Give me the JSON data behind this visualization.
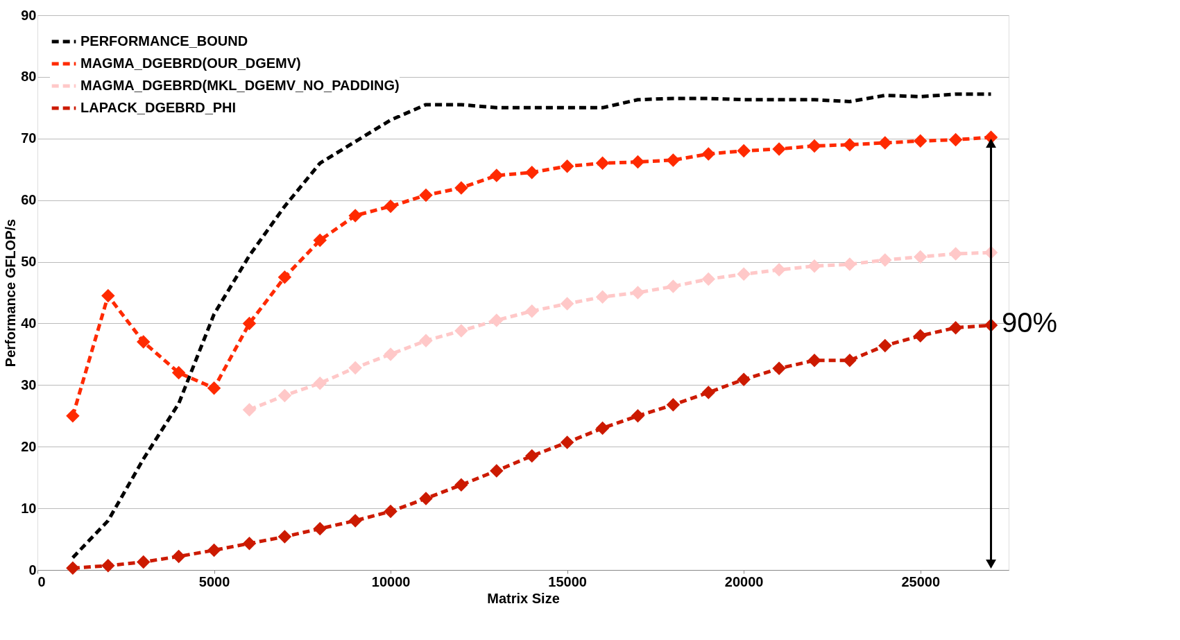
{
  "chart_data": {
    "type": "line",
    "xlabel": "Matrix Size",
    "ylabel": "Performance GFLOP/s",
    "x": [
      1000,
      2000,
      3000,
      4000,
      5000,
      6000,
      7000,
      8000,
      9000,
      10000,
      11000,
      12000,
      13000,
      14000,
      15000,
      16000,
      17000,
      18000,
      19000,
      20000,
      21000,
      22000,
      23000,
      24000,
      25000,
      26000,
      27000
    ],
    "series": [
      {
        "name": "PERFORMANCE_BOUND",
        "color": "#000000",
        "marker": "none",
        "values": [
          2,
          8,
          18,
          27,
          41.5,
          51,
          59,
          66,
          69.5,
          73,
          75.5,
          75.5,
          75,
          75,
          75,
          75,
          76.3,
          76.5,
          76.5,
          76.3,
          76.3,
          76.3,
          76,
          77,
          76.8,
          77.2,
          77.2
        ]
      },
      {
        "name": "MAGMA_DGEBRD(OUR_DGEMV)",
        "color": "#ff2a00",
        "marker": "diamond",
        "values": [
          25,
          44.5,
          37,
          32,
          29.5,
          40,
          47.5,
          53.5,
          57.5,
          59,
          60.8,
          62,
          64,
          64.5,
          65.5,
          66,
          66.2,
          66.5,
          67.5,
          68,
          68.3,
          68.8,
          69,
          69.3,
          69.6,
          69.8,
          70.2
        ]
      },
      {
        "name": "MAGMA_DGEBRD(MKL_DGEMV_NO_PADDING)",
        "color": "#ffc8c8",
        "marker": "diamond",
        "values": [
          null,
          null,
          null,
          null,
          null,
          26,
          28.3,
          30.3,
          32.8,
          35,
          37.2,
          38.8,
          40.5,
          42,
          43.2,
          44.3,
          45,
          46,
          47.2,
          48,
          48.7,
          49.3,
          49.6,
          50.3,
          50.8,
          51.3,
          51.5
        ]
      },
      {
        "name": "LAPACK_DGEBRD_PHI",
        "color": "#cc1a00",
        "marker": "diamond",
        "values": [
          0.3,
          0.7,
          1.3,
          2.2,
          3.2,
          4.3,
          5.4,
          6.7,
          8,
          9.5,
          11.6,
          13.8,
          16.1,
          18.5,
          20.7,
          23,
          25,
          26.8,
          28.8,
          30.9,
          32.7,
          34,
          34,
          36.4,
          38,
          39.3,
          39.7
        ]
      }
    ],
    "xlim": [
      0,
      27500
    ],
    "xticks": [
      0,
      5000,
      10000,
      15000,
      20000,
      25000
    ],
    "ylim": [
      0,
      90
    ],
    "yticks": [
      0,
      10,
      20,
      30,
      40,
      50,
      60,
      70,
      80,
      90
    ],
    "grid": "y",
    "legend": "top left",
    "line_style": "dashed",
    "annotations": [
      "90%"
    ]
  }
}
